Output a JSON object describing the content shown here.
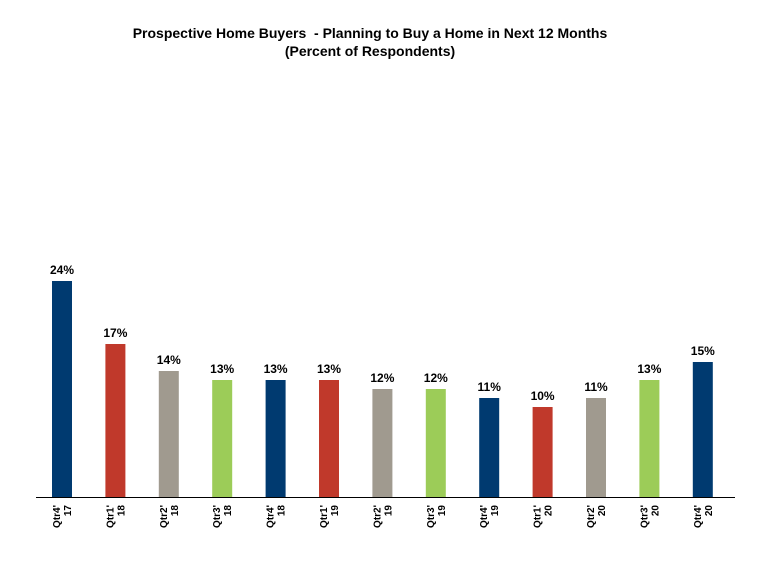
{
  "chart_data": {
    "type": "bar",
    "title": "Prospective Home Buyers  - Planning to Buy a Home in Next 12 Months",
    "subtitle": "(Percent of Respondents)",
    "categories": [
      [
        "Qtr4'",
        "17"
      ],
      [
        "Qtr1'",
        "18"
      ],
      [
        "Qtr2'",
        "18"
      ],
      [
        "Qtr3'",
        "18"
      ],
      [
        "Qtr4'",
        "18"
      ],
      [
        "Qtr1'",
        "19"
      ],
      [
        "Qtr2'",
        "19"
      ],
      [
        "Qtr3'",
        "19"
      ],
      [
        "Qtr4'",
        "19"
      ],
      [
        "Qtr1'",
        "20"
      ],
      [
        "Qtr2'",
        "20"
      ],
      [
        "Qtr3'",
        "20"
      ],
      [
        "Qtr4'",
        "20"
      ]
    ],
    "values": [
      24,
      17,
      14,
      13,
      13,
      13,
      12,
      12,
      11,
      10,
      11,
      13,
      15
    ],
    "value_labels": [
      "24%",
      "17%",
      "14%",
      "13%",
      "13%",
      "13%",
      "12%",
      "12%",
      "11%",
      "10%",
      "11%",
      "13%",
      "15%"
    ],
    "bar_colors": [
      "#003a70",
      "#c0392b",
      "#a09a8f",
      "#9ccc58",
      "#003a70",
      "#c0392b",
      "#a09a8f",
      "#9ccc58",
      "#003a70",
      "#c0392b",
      "#a09a8f",
      "#9ccc58",
      "#003a70"
    ],
    "ylim": [
      0,
      24
    ],
    "grid": false,
    "legend": "none"
  }
}
